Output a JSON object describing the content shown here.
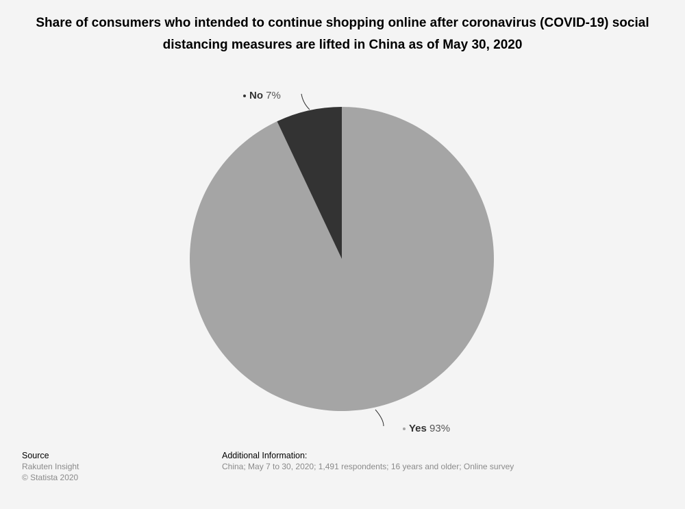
{
  "title": "Share of consumers who intended to continue shopping online after coronavirus (COVID-19) social distancing measures are lifted in China as of May 30, 2020",
  "chart_data": {
    "type": "pie",
    "slices": [
      {
        "label": "Yes",
        "value": 93,
        "value_label": "93%",
        "color": "#a5a5a5"
      },
      {
        "label": "No",
        "value": 7,
        "value_label": "7%",
        "color": "#333333"
      }
    ]
  },
  "footer": {
    "source_heading": "Source",
    "source_lines": [
      "Rakuten Insight",
      "© Statista 2020"
    ],
    "info_heading": "Additional Information:",
    "info_text": "China; May 7 to 30, 2020; 1,491 respondents; 16 years and older; Online survey"
  },
  "colors": {
    "background": "#f4f4f4",
    "leader_line": "#333333",
    "label_value": "#555555"
  }
}
